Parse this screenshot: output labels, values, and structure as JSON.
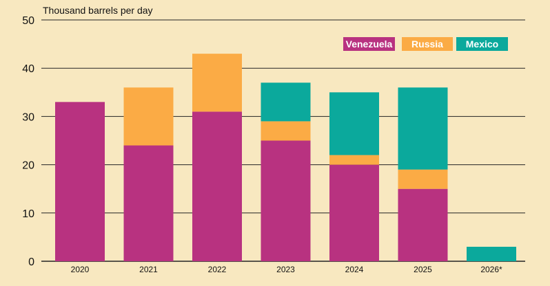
{
  "chart_data": {
    "type": "bar",
    "stacked": true,
    "ylabel": "Thousand barrels per day",
    "ylim": [
      0,
      50
    ],
    "yticks": [
      0,
      10,
      20,
      30,
      40,
      50
    ],
    "grid": true,
    "legend_placement": "top-right",
    "categories": [
      "2020",
      "2021",
      "2022",
      "2023",
      "2024",
      "2025",
      "2026*"
    ],
    "series": [
      {
        "name": "Venezuela",
        "color": "#b83280",
        "values": [
          33,
          24,
          31,
          25,
          20,
          15,
          0
        ]
      },
      {
        "name": "Russia",
        "color": "#fbab45",
        "values": [
          0,
          12,
          12,
          4,
          2,
          4,
          0
        ]
      },
      {
        "name": "Mexico",
        "color": "#0ba99c",
        "values": [
          0,
          0,
          0,
          8,
          13,
          17,
          3
        ]
      }
    ]
  }
}
